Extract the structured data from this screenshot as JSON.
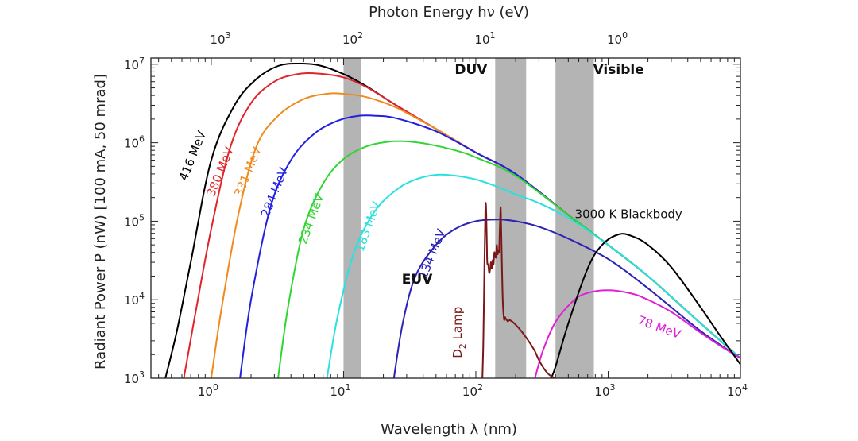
{
  "chart_data": {
    "type": "line",
    "title": "",
    "xlabel": "Wavelength λ (nm)",
    "ylabel": "Radiant Power P (nW) [100 mA, 50 mrad]",
    "top_xlabel": "Photon Energy hν (eV)",
    "x_scale": "log",
    "y_scale": "log",
    "xlim": [
      0.35,
      10000
    ],
    "ylim": [
      1000,
      12000000
    ],
    "x_ticks": [
      {
        "base": "10",
        "exp": "0",
        "value": 1
      },
      {
        "base": "10",
        "exp": "1",
        "value": 10
      },
      {
        "base": "10",
        "exp": "2",
        "value": 100
      },
      {
        "base": "10",
        "exp": "3",
        "value": 1000
      },
      {
        "base": "10",
        "exp": "4",
        "value": 10000
      }
    ],
    "y_ticks": [
      {
        "base": "10",
        "exp": "3",
        "value": 1000
      },
      {
        "base": "10",
        "exp": "4",
        "value": 10000
      },
      {
        "base": "10",
        "exp": "5",
        "value": 100000
      },
      {
        "base": "10",
        "exp": "6",
        "value": 1000000
      },
      {
        "base": "10",
        "exp": "7",
        "value": 10000000
      }
    ],
    "top_ticks": [
      {
        "base": "10",
        "exp": "3",
        "energy_ev": 1000
      },
      {
        "base": "10",
        "exp": "2",
        "energy_ev": 100
      },
      {
        "base": "10",
        "exp": "1",
        "energy_ev": 10
      },
      {
        "base": "10",
        "exp": "0",
        "energy_ev": 1
      }
    ],
    "bands": [
      {
        "name": "EUV",
        "x_range": [
          10,
          13.5
        ]
      },
      {
        "name": "DUV",
        "x_range": [
          140,
          240
        ]
      },
      {
        "name": "Visible",
        "x_range": [
          400,
          780
        ]
      }
    ],
    "annotations": [
      {
        "text": "EUV",
        "x": 36,
        "y": 16000
      },
      {
        "text": "DUV",
        "x": 92,
        "y": 7500000
      },
      {
        "text": "Visible",
        "x": 1200,
        "y": 7500000
      }
    ],
    "series": [
      {
        "name": "416 MeV",
        "color": "#000000",
        "label": {
          "x": 0.65,
          "y": 320000,
          "angle": -68
        },
        "x": [
          0.45,
          0.55,
          0.7,
          1.0,
          1.5,
          2.2,
          3.2,
          4.5,
          6.5,
          10,
          15,
          25,
          50,
          100,
          200,
          500,
          1000,
          2000,
          5000,
          10000
        ],
        "y": [
          1000,
          4000,
          30000,
          600000,
          3000000,
          6500000,
          9500000,
          10200000,
          9700000,
          7500000,
          5200000,
          3000000,
          1500000,
          750000,
          400000,
          120000,
          50000,
          20000,
          5000,
          1800
        ]
      },
      {
        "name": "380 MeV",
        "color": "#e0242a",
        "label": {
          "x": 1.05,
          "y": 200000,
          "angle": -68
        },
        "x": [
          0.62,
          0.75,
          1.0,
          1.4,
          2.0,
          3.0,
          4.5,
          6.5,
          10,
          15,
          25,
          50,
          100,
          200,
          500,
          1000,
          2000,
          5000,
          10000
        ],
        "y": [
          1000,
          6000,
          80000,
          900000,
          3200000,
          6000000,
          7500000,
          7600000,
          6800000,
          5100000,
          3000000,
          1500000,
          750000,
          400000,
          120000,
          50000,
          20000,
          5000,
          1800
        ]
      },
      {
        "name": "331 MeV",
        "color": "#f08a1c",
        "label": {
          "x": 1.7,
          "y": 200000,
          "angle": -68
        },
        "x": [
          1.0,
          1.2,
          1.6,
          2.2,
          3.2,
          5.0,
          7.5,
          10,
          15,
          25,
          50,
          100,
          200,
          500,
          1000,
          2000,
          5000,
          10000
        ],
        "y": [
          1000,
          8000,
          120000,
          900000,
          2200000,
          3600000,
          4200000,
          4200000,
          3800000,
          2800000,
          1500000,
          750000,
          400000,
          120000,
          50000,
          20000,
          5000,
          1800
        ]
      },
      {
        "name": "284 MeV",
        "color": "#2020e0",
        "label": {
          "x": 2.7,
          "y": 110000,
          "angle": -68
        },
        "x": [
          1.65,
          2.0,
          2.8,
          4.0,
          6.0,
          9.0,
          13,
          18,
          25,
          50,
          100,
          200,
          500,
          1000,
          2000,
          5000,
          10000
        ],
        "y": [
          1000,
          10000,
          150000,
          600000,
          1300000,
          1900000,
          2200000,
          2200000,
          2050000,
          1400000,
          750000,
          400000,
          120000,
          50000,
          20000,
          5000,
          1800
        ]
      },
      {
        "name": "234 MeV",
        "color": "#2fd62f",
        "label": {
          "x": 5.2,
          "y": 50000,
          "angle": -70
        },
        "x": [
          3.2,
          3.8,
          5.0,
          7.0,
          10,
          15,
          22,
          30,
          45,
          70,
          100,
          200,
          500,
          1000,
          2000,
          5000,
          10000
        ],
        "y": [
          1000,
          8000,
          80000,
          300000,
          620000,
          900000,
          1030000,
          1040000,
          950000,
          800000,
          650000,
          380000,
          120000,
          50000,
          20000,
          5000,
          1800
        ]
      },
      {
        "name": "183 MeV",
        "color": "#2ae0e0",
        "label": {
          "x": 14,
          "y": 40000,
          "angle": -70
        },
        "x": [
          7.5,
          9,
          12,
          17,
          25,
          35,
          50,
          70,
          100,
          150,
          200,
          300,
          500,
          1000,
          2000,
          5000,
          10000
        ],
        "y": [
          1000,
          6000,
          40000,
          130000,
          250000,
          340000,
          390000,
          380000,
          340000,
          270000,
          220000,
          170000,
          110000,
          50000,
          20000,
          5000,
          1800
        ]
      },
      {
        "name": "134 MeV",
        "color": "#2b22b5",
        "label": {
          "x": 42,
          "y": 18000,
          "angle": -68
        },
        "x": [
          24,
          28,
          35,
          50,
          70,
          100,
          150,
          200,
          300,
          500,
          1000,
          2000,
          5000,
          10000
        ],
        "y": [
          1000,
          5000,
          20000,
          50000,
          80000,
          100000,
          105000,
          100000,
          85000,
          60000,
          33000,
          14000,
          4000,
          1800
        ]
      },
      {
        "name": "78 MeV",
        "color": "#e020d6",
        "label": {
          "x": 1650,
          "y": 5000,
          "angle": 20
        },
        "x": [
          280,
          320,
          400,
          550,
          700,
          1000,
          1500,
          2000,
          3000,
          5000,
          7000,
          10000
        ],
        "y": [
          1000,
          2200,
          5200,
          9800,
          12200,
          13200,
          12000,
          10000,
          7000,
          3800,
          2600,
          1800
        ]
      },
      {
        "name": "3000 K Blackbody",
        "color": "#000000",
        "label": {
          "x": 560,
          "y": 110000,
          "angle": 0
        },
        "x": [
          370,
          400,
          500,
          700,
          900,
          1200,
          1500,
          2000,
          3000,
          5000,
          7000,
          10000
        ],
        "y": [
          1000,
          1400,
          5000,
          25000,
          50000,
          68000,
          65000,
          50000,
          26000,
          8000,
          3500,
          1500
        ]
      },
      {
        "name": "D2 Lamp",
        "color": "#7a1818",
        "label_text": "D",
        "label_sub": "2",
        "label_rest": " Lamp",
        "label": {
          "x": 78,
          "y": 1800,
          "angle": -90
        },
        "x": [
          112,
          114,
          116,
          118,
          119,
          120,
          121,
          122,
          124,
          126,
          128,
          130,
          132,
          134,
          136,
          138,
          140,
          142,
          144,
          146,
          148,
          150,
          152,
          154,
          156,
          158,
          160,
          162,
          164,
          166,
          170,
          175,
          180,
          190,
          200,
          220,
          240,
          260,
          280,
          300,
          330,
          360,
          400
        ],
        "y": [
          1000,
          3000,
          25000,
          130000,
          170000,
          120000,
          60000,
          30000,
          28000,
          22000,
          24000,
          30000,
          25000,
          32000,
          28000,
          40000,
          36000,
          35000,
          50000,
          38000,
          42000,
          42000,
          85000,
          150000,
          60000,
          22000,
          9000,
          6500,
          5500,
          6000,
          5600,
          5300,
          5500,
          5200,
          4800,
          4000,
          3300,
          2700,
          2200,
          1700,
          1300,
          1100,
          1000
        ]
      }
    ]
  }
}
